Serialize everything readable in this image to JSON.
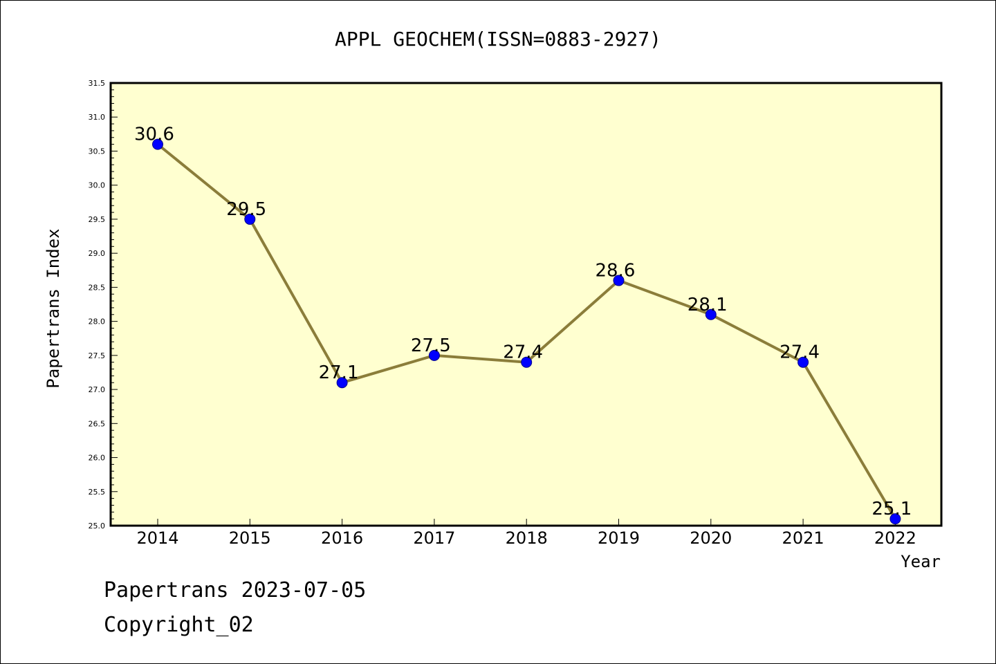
{
  "colors": {
    "plot_background": "#ffffd0",
    "line": "#8b7d3a",
    "marker": "#0000ff"
  },
  "chart_data": {
    "type": "line",
    "title": "APPL GEOCHEM(ISSN=0883-2927)",
    "xlabel": "Year",
    "ylabel": "Papertrans Index",
    "x": [
      "2014",
      "2015",
      "2016",
      "2017",
      "2018",
      "2019",
      "2020",
      "2021",
      "2022"
    ],
    "series": [
      {
        "values": [
          30.6,
          29.5,
          27.1,
          27.5,
          27.4,
          28.6,
          28.1,
          27.4,
          25.1
        ]
      }
    ],
    "data_labels": [
      "30.6",
      "29.5",
      "27.1",
      "27.5",
      "27.4",
      "28.6",
      "28.1",
      "27.4",
      "25.1"
    ],
    "ylim": [
      25.0,
      31.5
    ],
    "yticks": [
      "25.0",
      "25.5",
      "26.0",
      "26.5",
      "27.0",
      "27.5",
      "28.0",
      "28.5",
      "29.0",
      "29.5",
      "30.0",
      "30.5",
      "31.0",
      "31.5"
    ],
    "grid": false,
    "legend": false
  },
  "footer": {
    "line1": "Papertrans 2023-07-05",
    "line2": "Copyright_02"
  }
}
